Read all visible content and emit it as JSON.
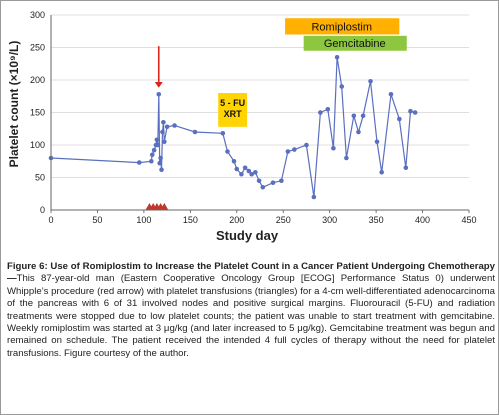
{
  "chart_data": {
    "type": "line",
    "xlabel": "Study day",
    "ylabel": "Platelet count (×10⁹/L)",
    "xlim": [
      0,
      450
    ],
    "ylim": [
      0,
      300
    ],
    "xticks": [
      "0",
      "50",
      "100",
      "150",
      "200",
      "250",
      "300",
      "350",
      "400",
      "450"
    ],
    "yticks": [
      "0",
      "50",
      "100",
      "150",
      "200",
      "250",
      "300"
    ],
    "series": [
      {
        "color": "#5a6fbf",
        "marker": "circle",
        "x": [
          0,
          95,
          108,
          109,
          111,
          113,
          114,
          115,
          116,
          117,
          118,
          119,
          120,
          121,
          122,
          125,
          133,
          155,
          185,
          190,
          197,
          200,
          205,
          209,
          213,
          216,
          220,
          224,
          228,
          239,
          248,
          255,
          262,
          275,
          283,
          290,
          298,
          304,
          308,
          313,
          318,
          326,
          331,
          336,
          344,
          351,
          356,
          366,
          375,
          382,
          387,
          392
        ],
        "y": [
          80,
          73,
          75,
          85,
          92,
          100,
          108,
          100,
          178,
          72,
          80,
          62,
          120,
          135,
          105,
          128,
          130,
          120,
          118,
          90,
          75,
          63,
          55,
          65,
          60,
          55,
          58,
          45,
          35,
          42,
          45,
          90,
          93,
          100,
          20,
          150,
          155,
          95,
          235,
          190,
          80,
          145,
          120,
          145,
          198,
          105,
          58,
          178,
          140,
          65,
          152,
          150
        ]
      }
    ],
    "transfusion_days": [
      106,
      110,
      114,
      118,
      122
    ],
    "transfusion_color": "#c0392b",
    "arrow_day": 116,
    "arrow_color": "#d9261c",
    "annotations": {
      "fu_label_line1": "5 - FU",
      "fu_label_line2": "XRT",
      "fu_color": "#ffd400",
      "romiplostim": "Romiplostim",
      "romiplostim_color": "#ffb000",
      "gemcitabine": "Gemcitabine",
      "gemcitabine_color": "#8dc63f"
    }
  },
  "caption": {
    "lead": "Figure 6: Use of Romiplostim to Increase the Platelet Count in a Cancer Patient Undergoing Chemotherapy—",
    "body": "This 87-year-old man (Eastern Cooperative Oncology Group [ECOG] Performance Status 0) underwent Whipple’s procedure (red arrow) with platelet transfusions (triangles) for a 4-cm well-differentiated adenocarcinoma of the pancreas with 6 of 31 involved nodes and positive surgical margins. Fluorouracil (5-FU) and radiation treatments were stopped due to low platelet counts; the patient was unable to start treatment with gemcitabine. Weekly romiplostim was started at 3 μg/kg (and later increased to 5 μg/kg). Gemcitabine treatment was begun and remained on schedule. The patient received the intended 4 full cycles of therapy without the need for platelet transfusions. Figure courtesy of the author."
  }
}
